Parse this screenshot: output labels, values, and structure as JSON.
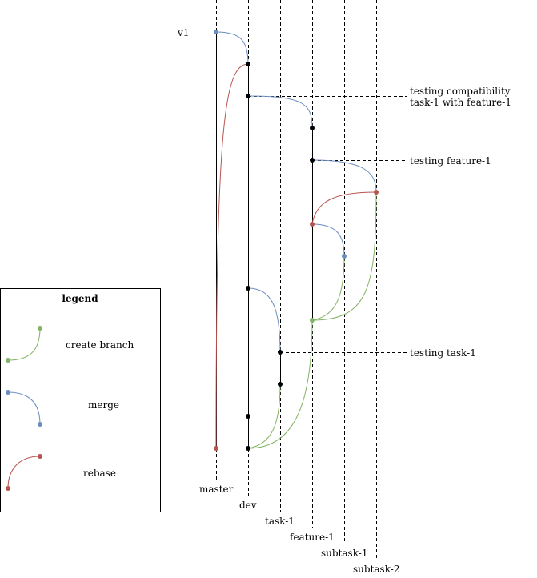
{
  "colors": {
    "merge": "#6c8ebf",
    "create_branch": "#82b366",
    "rebase": "#b85450",
    "commit": "#000000"
  },
  "branches": [
    {
      "id": "master",
      "label": "master"
    },
    {
      "id": "dev",
      "label": "dev"
    },
    {
      "id": "task1",
      "label": "task-1"
    },
    {
      "id": "feature1",
      "label": "feature-1"
    },
    {
      "id": "subtask1",
      "label": "subtask-1"
    },
    {
      "id": "subtask2",
      "label": "subtask-2"
    }
  ],
  "tags": {
    "v1": "v1"
  },
  "annotations": {
    "testing_compat_line1": "testing compatibility",
    "testing_compat_line2": "task-1 with feature-1",
    "testing_feature": "testing feature-1",
    "testing_task": "testing task-1"
  },
  "legend": {
    "title": "legend",
    "items": [
      {
        "id": "create_branch",
        "label": "create branch"
      },
      {
        "id": "merge",
        "label": "merge"
      },
      {
        "id": "rebase",
        "label": "rebase"
      }
    ]
  }
}
